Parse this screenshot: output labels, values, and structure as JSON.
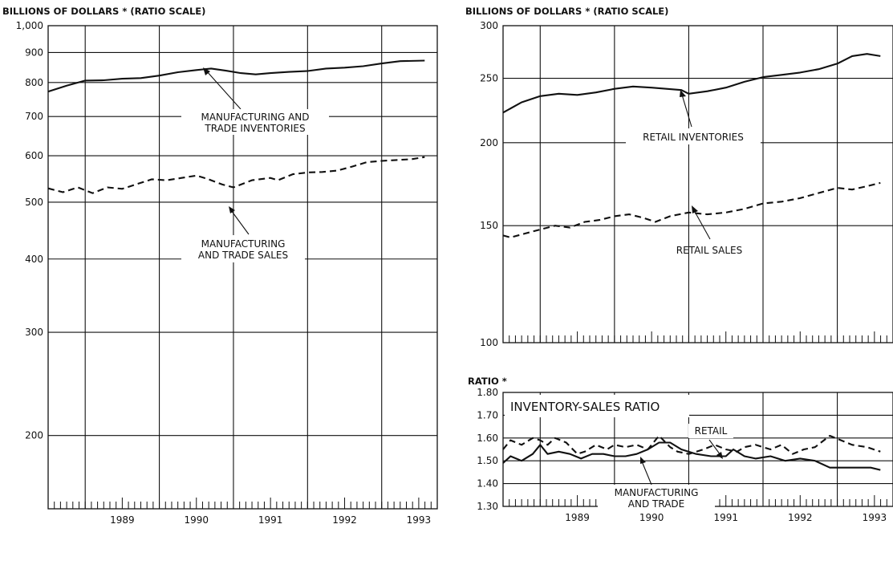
{
  "chart_data": [
    {
      "type": "line",
      "header": "BILLIONS OF DOLLARS * (RATIO SCALE)",
      "yscale": "log",
      "ylim": [
        150,
        1000
      ],
      "yticks": [
        200,
        300,
        400,
        500,
        600,
        700,
        800,
        900,
        1000
      ],
      "ytick_labels": [
        "200",
        "300",
        "400",
        "500",
        "600",
        "700",
        "800",
        "900",
        "1,000"
      ],
      "xlim": [
        1988.5,
        1993.75
      ],
      "xticks": [
        "1989",
        "1990",
        "1991",
        "1992",
        "1993"
      ],
      "grid": true,
      "series": [
        {
          "name": "MANUFACTURING AND TRADE INVENTORIES",
          "style": "solid",
          "x": [
            1988.5,
            1988.75,
            1989.0,
            1989.25,
            1989.5,
            1989.75,
            1990.0,
            1990.25,
            1990.5,
            1990.7,
            1990.9,
            1991.1,
            1991.3,
            1991.5,
            1991.75,
            1992.0,
            1992.25,
            1992.5,
            1992.75,
            1993.0,
            1993.25,
            1993.58
          ],
          "values": [
            772,
            790,
            806,
            807,
            812,
            814,
            822,
            833,
            840,
            845,
            838,
            830,
            826,
            830,
            834,
            837,
            845,
            848,
            853,
            862,
            870,
            872
          ]
        },
        {
          "name": "MANUFACTURING AND TRADE SALES",
          "style": "dashed",
          "x": [
            1988.5,
            1988.7,
            1988.9,
            1989.1,
            1989.3,
            1989.5,
            1989.7,
            1989.9,
            1990.1,
            1990.3,
            1990.5,
            1990.65,
            1990.85,
            1991.0,
            1991.25,
            1991.5,
            1991.6,
            1991.8,
            1992.0,
            1992.2,
            1992.4,
            1992.6,
            1992.8,
            1993.0,
            1993.2,
            1993.4,
            1993.58
          ],
          "values": [
            528,
            520,
            530,
            518,
            530,
            527,
            537,
            547,
            545,
            550,
            555,
            548,
            536,
            530,
            545,
            550,
            545,
            558,
            562,
            563,
            566,
            575,
            585,
            588,
            590,
            592,
            597
          ]
        }
      ],
      "annotations": [
        "MANUFACTURING AND",
        "TRADE INVENTORIES",
        "MANUFACTURING",
        "AND TRADE SALES"
      ]
    },
    {
      "type": "line",
      "header": "BILLIONS OF DOLLARS * (RATIO SCALE)",
      "yscale": "log",
      "ylim": [
        100,
        300
      ],
      "yticks": [
        100,
        150,
        200,
        250,
        300
      ],
      "ytick_labels": [
        "100",
        "150",
        "200",
        "250",
        "300"
      ],
      "xlim": [
        1988.5,
        1993.75
      ],
      "grid": true,
      "series": [
        {
          "name": "RETAIL INVENTORIES",
          "style": "solid",
          "x": [
            1988.5,
            1988.75,
            1989.0,
            1989.25,
            1989.5,
            1989.75,
            1990.0,
            1990.25,
            1990.5,
            1990.7,
            1990.9,
            1991.0,
            1991.25,
            1991.5,
            1991.75,
            1992.0,
            1992.25,
            1992.5,
            1992.75,
            1993.0,
            1993.2,
            1993.4,
            1993.58
          ],
          "values": [
            222,
            230,
            235,
            237,
            236,
            238,
            241,
            243,
            242,
            241,
            240,
            237,
            239,
            242,
            247,
            251,
            253,
            255,
            258,
            263,
            270,
            272,
            270
          ]
        },
        {
          "name": "RETAIL SALES",
          "style": "dashed",
          "x": [
            1988.5,
            1988.6,
            1988.8,
            1989.0,
            1989.2,
            1989.4,
            1989.6,
            1989.8,
            1990.0,
            1990.2,
            1990.4,
            1990.55,
            1990.75,
            1991.0,
            1991.25,
            1991.5,
            1991.75,
            1992.0,
            1992.25,
            1992.5,
            1992.75,
            1993.0,
            1993.2,
            1993.4,
            1993.58
          ],
          "values": [
            145,
            144,
            146,
            148,
            150,
            149,
            152,
            153,
            155,
            156,
            154,
            152,
            155,
            157,
            156,
            157,
            159,
            162,
            163,
            165,
            168,
            171,
            170,
            172,
            174
          ]
        }
      ],
      "annotations": [
        "RETAIL INVENTORIES",
        "RETAIL SALES"
      ]
    },
    {
      "type": "line",
      "header": "RATIO *",
      "title": "INVENTORY-SALES RATIO",
      "ylim": [
        1.3,
        1.8
      ],
      "yticks": [
        1.3,
        1.4,
        1.5,
        1.6,
        1.7,
        1.8
      ],
      "ytick_labels": [
        "1.30",
        "1.40",
        "1.50",
        "1.60",
        "1.70",
        "1.80"
      ],
      "xlim": [
        1988.5,
        1993.75
      ],
      "xticks": [
        "1989",
        "1990",
        "1991",
        "1992",
        "1993"
      ],
      "grid": true,
      "series": [
        {
          "name": "RETAIL",
          "style": "dashed",
          "x": [
            1988.5,
            1988.6,
            1988.75,
            1988.9,
            1989.0,
            1989.1,
            1989.2,
            1989.35,
            1989.5,
            1989.6,
            1989.75,
            1989.9,
            1990.0,
            1990.15,
            1990.3,
            1990.45,
            1990.6,
            1990.75,
            1990.85,
            1991.0,
            1991.2,
            1991.35,
            1991.5,
            1991.65,
            1991.75,
            1991.9,
            1992.1,
            1992.25,
            1992.4,
            1992.55,
            1992.7,
            1992.9,
            1993.05,
            1993.2,
            1993.4,
            1993.58
          ],
          "values": [
            1.55,
            1.59,
            1.57,
            1.6,
            1.59,
            1.57,
            1.6,
            1.58,
            1.53,
            1.54,
            1.57,
            1.55,
            1.57,
            1.56,
            1.57,
            1.55,
            1.61,
            1.56,
            1.54,
            1.53,
            1.55,
            1.57,
            1.55,
            1.54,
            1.56,
            1.57,
            1.55,
            1.57,
            1.53,
            1.55,
            1.56,
            1.61,
            1.59,
            1.57,
            1.56,
            1.54
          ]
        },
        {
          "name": "MANUFACTURING AND TRADE",
          "style": "solid",
          "x": [
            1988.5,
            1988.6,
            1988.75,
            1988.9,
            1989.0,
            1989.1,
            1989.25,
            1989.4,
            1989.55,
            1989.7,
            1989.85,
            1990.0,
            1990.15,
            1990.3,
            1990.45,
            1990.6,
            1990.75,
            1990.9,
            1991.1,
            1991.3,
            1991.5,
            1991.6,
            1991.75,
            1991.9,
            1992.1,
            1992.3,
            1992.5,
            1992.7,
            1992.9,
            1993.1,
            1993.3,
            1993.45,
            1993.58
          ],
          "values": [
            1.49,
            1.52,
            1.5,
            1.53,
            1.57,
            1.53,
            1.54,
            1.53,
            1.51,
            1.53,
            1.53,
            1.52,
            1.52,
            1.53,
            1.55,
            1.58,
            1.58,
            1.55,
            1.53,
            1.52,
            1.52,
            1.55,
            1.52,
            1.51,
            1.52,
            1.5,
            1.51,
            1.5,
            1.47,
            1.47,
            1.47,
            1.47,
            1.46
          ]
        }
      ],
      "annotations": [
        "RETAIL",
        "MANUFACTURING",
        "AND TRADE"
      ]
    }
  ]
}
